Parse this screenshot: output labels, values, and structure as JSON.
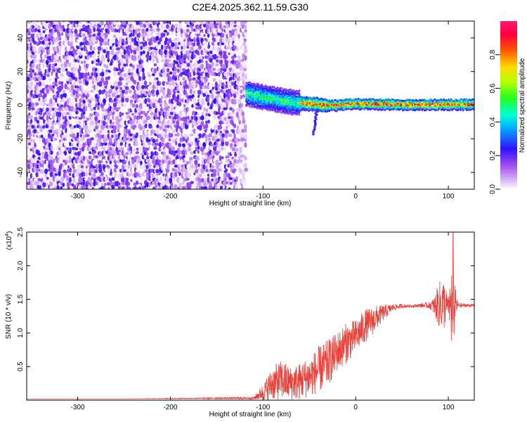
{
  "title": "C2E4.2025.362.11.59.G30",
  "chart_data": [
    {
      "type": "heatmap",
      "xlabel": "Height of straight line (km)",
      "ylabel": "Frequency (Hz)",
      "xlim": [
        -355,
        128
      ],
      "ylim": [
        -50,
        50
      ],
      "xticks": [
        -300,
        -200,
        -100,
        0,
        100
      ],
      "yticks": [
        -40,
        -20,
        0,
        20,
        40
      ],
      "colorbar": {
        "label": "Normalized spectral amplitude",
        "range": [
          0,
          1
        ],
        "ticks": [
          "0.0",
          "0.2",
          "0.4",
          "0.6",
          "0.8"
        ],
        "tick_values": [
          0.0,
          0.2,
          0.4,
          0.6,
          0.8
        ]
      },
      "regions": [
        {
          "kind": "broadband noise",
          "x_range": [
            -355,
            -118
          ],
          "y_range": [
            -50,
            50
          ],
          "amplitude_range": [
            0.0,
            0.25
          ]
        },
        {
          "kind": "narrow signal band",
          "x_range": [
            -118,
            128
          ],
          "center_frequency": [
            7,
            5,
            2,
            0.5,
            0,
            1,
            0.5,
            0.5
          ],
          "center_at_x": [
            -118,
            -100,
            -70,
            -40,
            -20,
            0,
            50,
            128
          ],
          "bandwidth_hz": [
            8,
            6,
            3,
            3
          ],
          "amplitude_range": [
            0.2,
            1.0
          ]
        },
        {
          "kind": "downward tail",
          "x_range": [
            -50,
            -43
          ],
          "y_range": [
            -18,
            -3
          ]
        }
      ]
    },
    {
      "type": "line",
      "xlabel": "Height of straight line (km)",
      "ylabel": "SNR (10 * v/v)",
      "yscale_label": "(x10^4)",
      "yscale_factor": 10000,
      "xlim": [
        -355,
        128
      ],
      "ylim": [
        0,
        2.5
      ],
      "xticks": [
        -300,
        -200,
        -100,
        0,
        100
      ],
      "yticks": [
        0.5,
        1.0,
        1.5,
        2.0,
        2.5
      ],
      "series": [
        {
          "color": "#e8413a",
          "x": [
            -355,
            -250,
            -150,
            -110,
            -100,
            -90,
            -80,
            -70,
            -60,
            -50,
            -40,
            -30,
            -20,
            -10,
            0,
            10,
            20,
            30,
            40,
            50,
            60,
            70,
            80,
            85,
            90,
            95,
            100,
            103,
            105,
            107,
            110,
            115,
            128
          ],
          "values": [
            0.02,
            0.02,
            0.03,
            0.03,
            0.12,
            0.25,
            0.3,
            0.25,
            0.28,
            0.35,
            0.45,
            0.55,
            0.72,
            0.85,
            0.95,
            1.1,
            1.2,
            1.3,
            1.38,
            1.4,
            1.4,
            1.41,
            1.41,
            1.4,
            1.42,
            1.42,
            1.41,
            1.4,
            1.4,
            1.42,
            1.41,
            1.41,
            1.41
          ],
          "noise_amplitude": [
            0.0,
            0.0,
            0.01,
            0.02,
            0.12,
            0.25,
            0.3,
            0.25,
            0.28,
            0.3,
            0.35,
            0.35,
            0.3,
            0.3,
            0.25,
            0.25,
            0.2,
            0.12,
            0.05,
            0.03,
            0.02,
            0.03,
            0.05,
            0.15,
            0.35,
            0.4,
            0.1,
            0.6,
            0.9,
            0.3,
            0.05,
            0.03,
            0.02
          ]
        }
      ]
    }
  ]
}
